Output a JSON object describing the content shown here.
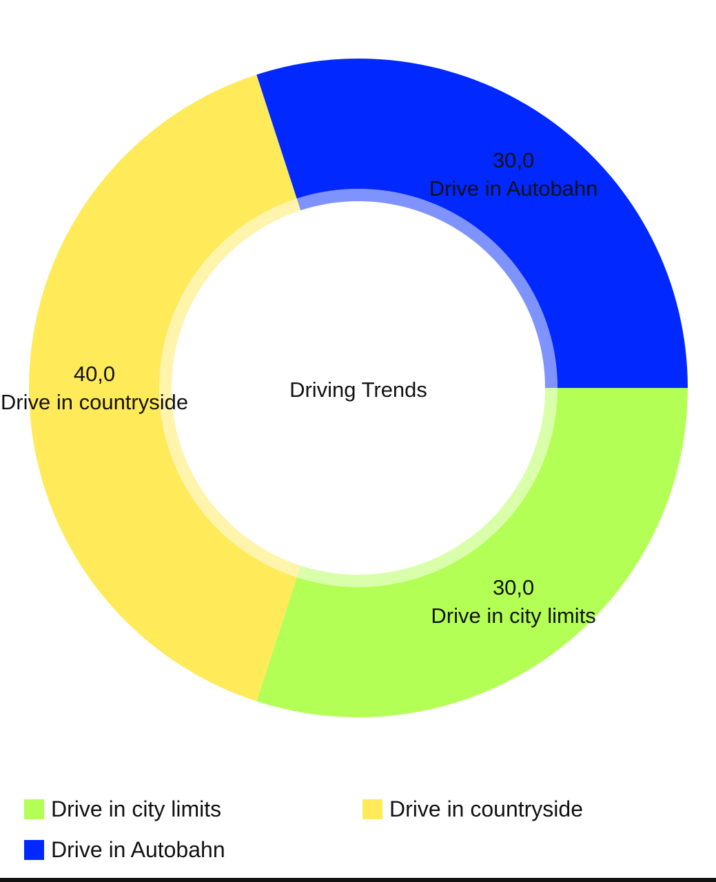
{
  "chart_data": {
    "type": "pie",
    "variant": "donut",
    "title": "Driving Trends",
    "slices": [
      {
        "label": "Drive in city limits",
        "value": 30.0,
        "display": "30,0",
        "color": "#b3ff55"
      },
      {
        "label": "Drive in countryside",
        "value": 40.0,
        "display": "40,0",
        "color": "#ffea59"
      },
      {
        "label": "Drive in Autobahn",
        "value": 30.0,
        "display": "30,0",
        "color": "#0028ff"
      }
    ],
    "legend_placement": "bottom",
    "legend": [
      {
        "label": "Drive in city limits",
        "color": "#b3ff55"
      },
      {
        "label": "Drive in countryside",
        "color": "#ffea59"
      },
      {
        "label": "Drive in Autobahn",
        "color": "#0028ff"
      }
    ]
  }
}
